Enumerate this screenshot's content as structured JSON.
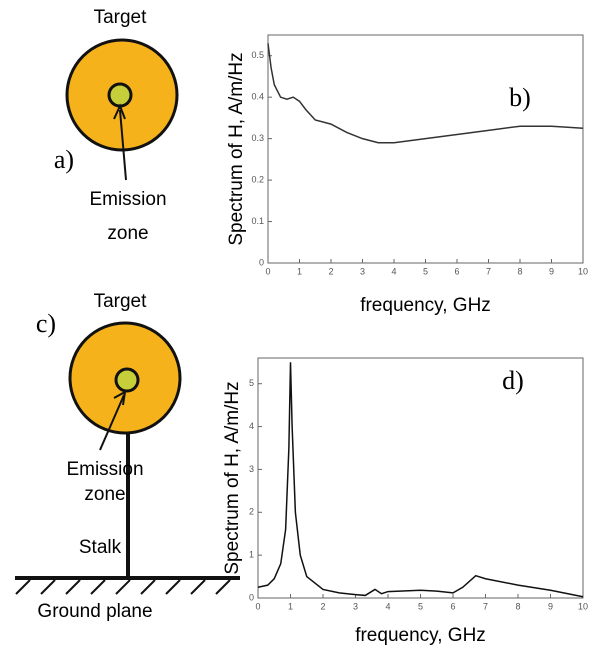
{
  "chart_data": [
    {
      "type": "line",
      "panel_label": "b)",
      "xlabel": "frequency, GHz",
      "ylabel": "Spectrum of H, A/m/Hz",
      "x": [
        0,
        0.1,
        0.2,
        0.4,
        0.6,
        0.8,
        1.0,
        1.2,
        1.5,
        2,
        2.5,
        3,
        3.5,
        4,
        5,
        6,
        7,
        8,
        9,
        10
      ],
      "values": [
        0.53,
        0.47,
        0.43,
        0.4,
        0.395,
        0.4,
        0.39,
        0.37,
        0.345,
        0.335,
        0.315,
        0.3,
        0.29,
        0.29,
        0.3,
        0.31,
        0.32,
        0.33,
        0.33,
        0.325
      ],
      "color": "#333333",
      "xlim": [
        0,
        10
      ],
      "xticks": [
        0,
        1,
        2,
        3,
        4,
        5,
        6,
        7,
        8,
        9,
        10
      ],
      "ylim": [
        0,
        0.55
      ],
      "yticks": [
        0,
        0.1,
        0.2,
        0.3,
        0.4,
        0.5
      ]
    },
    {
      "type": "line",
      "panel_label": "d)",
      "xlabel": "frequency, GHz",
      "ylabel": "Spectrum of H, A/m/Hz",
      "x": [
        0,
        0.3,
        0.5,
        0.7,
        0.85,
        0.95,
        1.0,
        1.05,
        1.15,
        1.3,
        1.5,
        2,
        2.5,
        3,
        3.3,
        3.6,
        3.8,
        4,
        5,
        5.5,
        6,
        6.3,
        6.7,
        7,
        8,
        9,
        10
      ],
      "values": [
        0.25,
        0.3,
        0.45,
        0.8,
        1.6,
        3.5,
        5.5,
        4.0,
        2.0,
        1.0,
        0.5,
        0.2,
        0.12,
        0.08,
        0.06,
        0.2,
        0.1,
        0.15,
        0.18,
        0.16,
        0.12,
        0.25,
        0.52,
        0.45,
        0.3,
        0.18,
        0.03
      ],
      "color": "#111111",
      "xlim": [
        0,
        10
      ],
      "xticks": [
        0,
        1,
        2,
        3,
        4,
        5,
        6,
        7,
        8,
        9,
        10
      ],
      "ylim": [
        0,
        5.6
      ],
      "yticks": [
        0,
        1,
        2,
        3,
        4,
        5
      ]
    }
  ],
  "diagram_top": {
    "title": "Target",
    "panel_label": "a)",
    "zone_line1": "Emission",
    "zone_line2": "zone"
  },
  "diagram_bottom": {
    "title": "Target",
    "panel_label": "c)",
    "zone_line1": "Emission",
    "zone_line2": "zone",
    "stalk": "Stalk",
    "ground": "Ground plane"
  }
}
